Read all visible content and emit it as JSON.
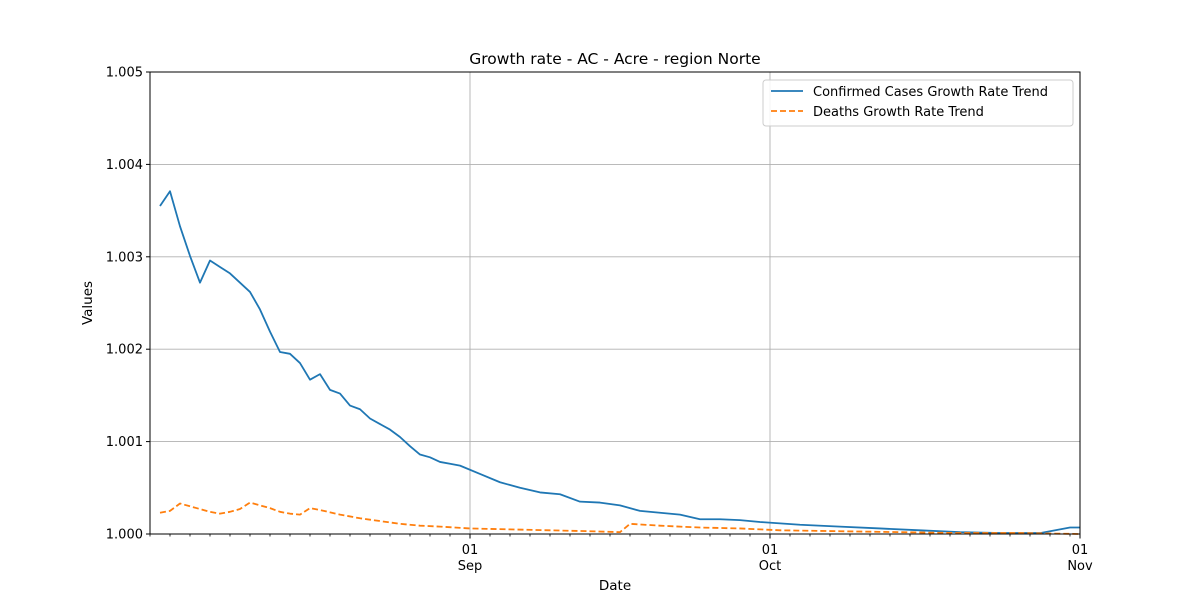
{
  "chart_data": {
    "type": "line",
    "title": "Growth rate - AC - Acre - region Norte",
    "xlabel": "Date",
    "ylabel": "Values",
    "ylim": [
      1.0,
      1.005
    ],
    "y_ticks": [
      1.0,
      1.001,
      1.002,
      1.003,
      1.004,
      1.005
    ],
    "y_tick_labels": [
      "1.000",
      "1.001",
      "1.002",
      "1.003",
      "1.004",
      "1.005"
    ],
    "xlim": [
      "2020-07-31",
      "2020-11-01"
    ],
    "x_major_ticks": [
      {
        "date": "2020-09-01",
        "day": "01",
        "month": "Sep"
      },
      {
        "date": "2020-10-01",
        "day": "01",
        "month": "Oct"
      },
      {
        "date": "2020-11-01",
        "day": "01",
        "month": "Nov"
      }
    ],
    "grid": true,
    "legend_position": "upper right",
    "series": [
      {
        "name": "Confirmed Cases Growth Rate Trend",
        "color": "#1f77b4",
        "style": "solid",
        "x": [
          "2020-08-01",
          "2020-08-02",
          "2020-08-03",
          "2020-08-04",
          "2020-08-05",
          "2020-08-06",
          "2020-08-07",
          "2020-08-08",
          "2020-08-09",
          "2020-08-10",
          "2020-08-11",
          "2020-08-12",
          "2020-08-13",
          "2020-08-14",
          "2020-08-15",
          "2020-08-16",
          "2020-08-17",
          "2020-08-18",
          "2020-08-19",
          "2020-08-20",
          "2020-08-21",
          "2020-08-22",
          "2020-08-23",
          "2020-08-24",
          "2020-08-25",
          "2020-08-26",
          "2020-08-27",
          "2020-08-28",
          "2020-08-29",
          "2020-08-30",
          "2020-08-31",
          "2020-09-02",
          "2020-09-04",
          "2020-09-06",
          "2020-09-08",
          "2020-09-10",
          "2020-09-12",
          "2020-09-14",
          "2020-09-16",
          "2020-09-18",
          "2020-09-20",
          "2020-09-22",
          "2020-09-24",
          "2020-09-26",
          "2020-09-28",
          "2020-09-30",
          "2020-10-04",
          "2020-10-08",
          "2020-10-12",
          "2020-10-16",
          "2020-10-20",
          "2020-10-24",
          "2020-10-28",
          "2020-10-31",
          "2020-11-01"
        ],
        "y": [
          1.00355,
          1.00371,
          1.00333,
          1.00301,
          1.00272,
          1.00296,
          1.00289,
          1.00282,
          1.00272,
          1.00262,
          1.00243,
          1.00219,
          1.00197,
          1.00195,
          1.00185,
          1.00167,
          1.00173,
          1.00156,
          1.00152,
          1.00139,
          1.00135,
          1.00125,
          1.00119,
          1.00113,
          1.00105,
          1.00095,
          1.00086,
          1.00083,
          1.00078,
          1.00076,
          1.00074,
          1.00065,
          1.00056,
          1.0005,
          1.00045,
          1.00043,
          1.00035,
          1.00034,
          1.00031,
          1.00025,
          1.00023,
          1.00021,
          1.00016,
          1.00016,
          1.00015,
          1.00013,
          1.0001,
          1.00008,
          1.00006,
          1.00004,
          1.00002,
          1.00001,
          1.00001,
          1.00007,
          1.00007
        ]
      },
      {
        "name": "Deaths Growth Rate Trend",
        "color": "#ff7f0e",
        "style": "dashed",
        "x": [
          "2020-08-01",
          "2020-08-02",
          "2020-08-03",
          "2020-08-04",
          "2020-08-05",
          "2020-08-06",
          "2020-08-07",
          "2020-08-08",
          "2020-08-09",
          "2020-08-10",
          "2020-08-11",
          "2020-08-12",
          "2020-08-13",
          "2020-08-14",
          "2020-08-15",
          "2020-08-16",
          "2020-08-17",
          "2020-08-19",
          "2020-08-21",
          "2020-08-23",
          "2020-08-25",
          "2020-08-27",
          "2020-08-29",
          "2020-09-01",
          "2020-09-05",
          "2020-09-09",
          "2020-09-13",
          "2020-09-16",
          "2020-09-17",
          "2020-09-20",
          "2020-09-24",
          "2020-09-28",
          "2020-10-02",
          "2020-10-08",
          "2020-10-14",
          "2020-10-20",
          "2020-10-26",
          "2020-11-01"
        ],
        "y": [
          1.00023,
          1.00025,
          1.00033,
          1.0003,
          1.00027,
          1.00024,
          1.00022,
          1.00024,
          1.00027,
          1.00034,
          1.00031,
          1.00028,
          1.00024,
          1.00022,
          1.00021,
          1.00028,
          1.00026,
          1.00021,
          1.00017,
          1.00014,
          1.00011,
          1.00009,
          1.00008,
          1.00006,
          1.00005,
          1.00004,
          1.00003,
          1.00002,
          1.00011,
          1.00009,
          1.00007,
          1.00006,
          1.00004,
          1.00003,
          1.00002,
          1.00001,
          1.00001,
          1.0
        ]
      }
    ]
  }
}
